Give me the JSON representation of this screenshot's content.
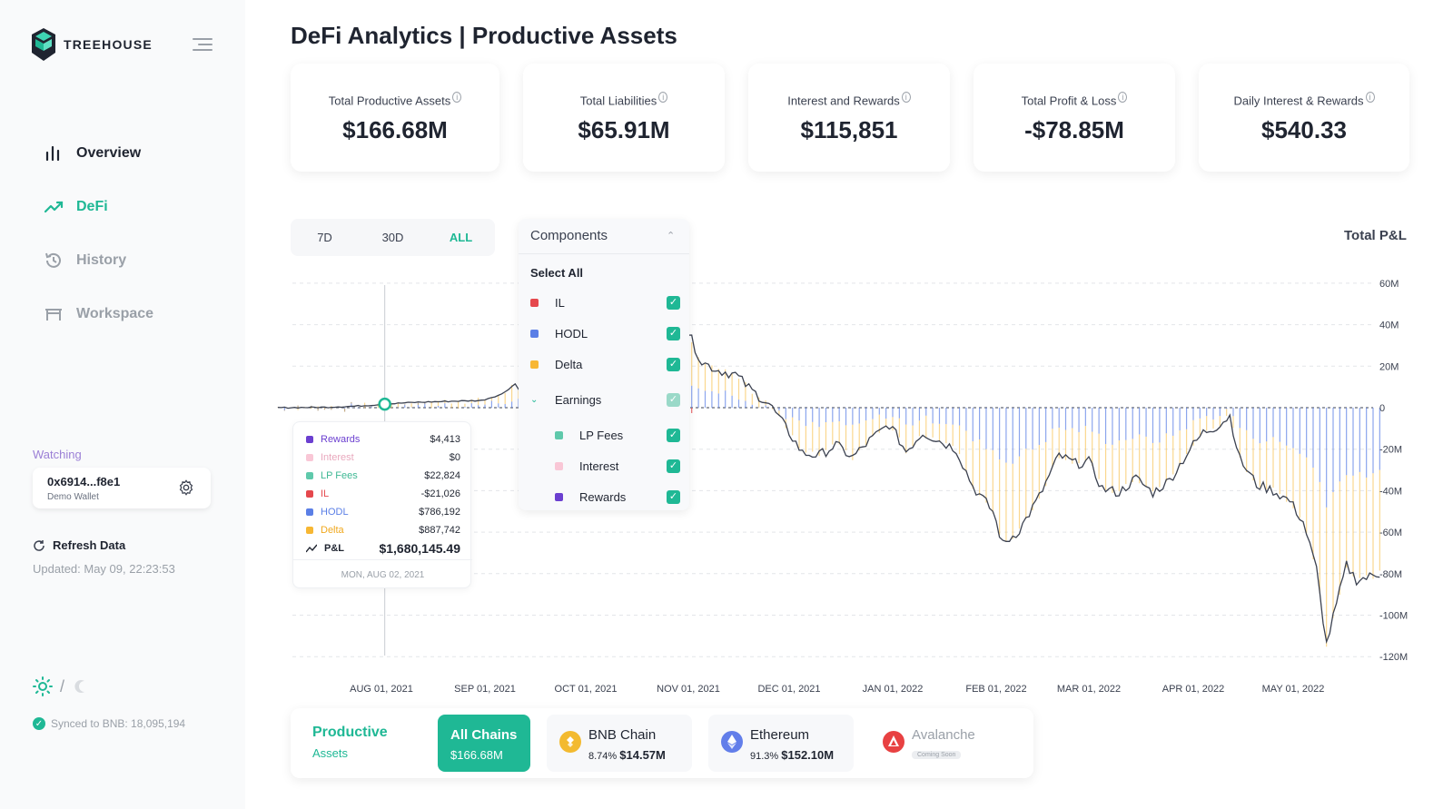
{
  "app": {
    "name": "TREEHOUSE"
  },
  "page": {
    "title": "DeFi Analytics | Productive Assets"
  },
  "sidebar": {
    "items": [
      {
        "label": "Overview"
      },
      {
        "label": "DeFi"
      },
      {
        "label": "History"
      },
      {
        "label": "Workspace"
      }
    ],
    "watching_label": "Watching",
    "wallet": {
      "address": "0x6914...f8e1",
      "name": "Demo Wallet"
    },
    "refresh_label": "Refresh Data",
    "updated": "Updated: May 09, 22:23:53",
    "theme_sep": "/",
    "synced": "Synced to BNB: 18,095,194"
  },
  "kpis": [
    {
      "label": "Total Productive Assets",
      "value": "$166.68M"
    },
    {
      "label": "Total Liabilities",
      "value": "$65.91M"
    },
    {
      "label": "Interest and Rewards",
      "value": "$115,851"
    },
    {
      "label": "Total Profit & Loss",
      "value": "-$78.85M"
    },
    {
      "label": "Daily Interest & Rewards",
      "value": "$540.33"
    }
  ],
  "info_glyph": "i",
  "range_tabs": [
    "7D",
    "30D",
    "ALL"
  ],
  "active_range": "ALL",
  "components": {
    "header": "Components",
    "select_all": "Select All",
    "items": [
      {
        "label": "IL",
        "color": "#e5484d",
        "checked": true
      },
      {
        "label": "HODL",
        "color": "#5b7fe6",
        "checked": true
      },
      {
        "label": "Delta",
        "color": "#f7b733",
        "checked": true
      },
      {
        "label": "Earnings",
        "checked": true
      },
      {
        "label": "LP Fees",
        "color": "#5fc9ab",
        "checked": true
      },
      {
        "label": "Interest",
        "color": "#f9c7d6",
        "checked": true
      },
      {
        "label": "Rewards",
        "color": "#6b3fd0",
        "checked": true
      }
    ]
  },
  "chart_data": {
    "type": "bar",
    "title": "Total P&L",
    "xlabel": "",
    "ylabel": "",
    "ylim": [
      -120000000,
      60000000
    ],
    "y_ticks": [
      "60M",
      "40M",
      "20M",
      "0",
      "-20M",
      "-40M",
      "-60M",
      "-80M",
      "-100M",
      "-120M"
    ],
    "x_ticks": [
      "AUG 01, 2021",
      "SEP 01, 2021",
      "OCT 01, 2021",
      "NOV 01, 2021",
      "DEC 01, 2021",
      "JAN 01, 2022",
      "FEB 01, 2022",
      "MAR 01, 2022",
      "APR 01, 2022",
      "MAY 01, 2022"
    ],
    "grid": true,
    "series": [
      {
        "name": "HODL",
        "color": "#5b7fe6"
      },
      {
        "name": "Delta",
        "color": "#f7b733"
      },
      {
        "name": "IL",
        "color": "#e5484d"
      },
      {
        "name": "P&L",
        "color": "#3b4150"
      }
    ],
    "pl_series": [
      [
        "2021-07-01",
        0
      ],
      [
        "2021-07-15",
        0.2
      ],
      [
        "2021-07-25",
        0.8
      ],
      [
        "2021-08-02",
        1.68
      ],
      [
        "2021-08-10",
        2.5
      ],
      [
        "2021-08-20",
        3.0
      ],
      [
        "2021-08-31",
        3.5
      ],
      [
        "2021-09-06",
        6.5
      ],
      [
        "2021-09-10",
        11.5
      ],
      [
        "2021-09-14",
        1.0
      ],
      [
        "2021-10-01",
        12
      ],
      [
        "2021-10-10",
        25
      ],
      [
        "2021-10-20",
        33
      ],
      [
        "2021-10-28",
        37
      ],
      [
        "2021-11-01",
        36
      ],
      [
        "2021-11-05",
        22
      ],
      [
        "2021-11-10",
        18
      ],
      [
        "2021-11-15",
        16
      ],
      [
        "2021-11-20",
        8
      ],
      [
        "2021-11-25",
        2
      ],
      [
        "2021-12-01",
        -12
      ],
      [
        "2021-12-05",
        -22
      ],
      [
        "2021-12-10",
        -23
      ],
      [
        "2021-12-15",
        -18
      ],
      [
        "2021-12-20",
        -24
      ],
      [
        "2021-12-25",
        -16
      ],
      [
        "2021-12-31",
        -8
      ],
      [
        "2022-01-05",
        -21
      ],
      [
        "2022-01-10",
        -12
      ],
      [
        "2022-01-15",
        -16
      ],
      [
        "2022-01-20",
        -20
      ],
      [
        "2022-01-25",
        -38
      ],
      [
        "2022-01-31",
        -50
      ],
      [
        "2022-02-03",
        -66
      ],
      [
        "2022-02-08",
        -59
      ],
      [
        "2022-02-14",
        -43
      ],
      [
        "2022-02-20",
        -23
      ],
      [
        "2022-02-25",
        -27
      ],
      [
        "2022-03-01",
        -26
      ],
      [
        "2022-03-05",
        -39
      ],
      [
        "2022-03-10",
        -41
      ],
      [
        "2022-03-15",
        -34
      ],
      [
        "2022-03-20",
        -41
      ],
      [
        "2022-03-25",
        -35
      ],
      [
        "2022-03-31",
        -20
      ],
      [
        "2022-04-04",
        -12
      ],
      [
        "2022-04-08",
        -9
      ],
      [
        "2022-04-12",
        -4
      ],
      [
        "2022-04-15",
        -25
      ],
      [
        "2022-04-20",
        -37
      ],
      [
        "2022-04-25",
        -40
      ],
      [
        "2022-04-30",
        -45
      ],
      [
        "2022-05-04",
        -55
      ],
      [
        "2022-05-08",
        -78
      ],
      [
        "2022-05-11",
        -114
      ],
      [
        "2022-05-14",
        -95
      ],
      [
        "2022-05-17",
        -76
      ],
      [
        "2022-05-20",
        -83
      ],
      [
        "2022-05-23",
        -82
      ],
      [
        "2022-05-27",
        -80
      ]
    ]
  },
  "tooltip": {
    "rows": [
      {
        "name": "Rewards",
        "color": "#6b3fd0",
        "value": "$4,413"
      },
      {
        "name": "Interest",
        "color": "#f9c7d6",
        "value": "$0"
      },
      {
        "name": "LP Fees",
        "color": "#5fc9ab",
        "value": "$22,824"
      },
      {
        "name": "IL",
        "color": "#e5484d",
        "value": "-$21,026"
      },
      {
        "name": "HODL",
        "color": "#5b7fe6",
        "value": "$786,192"
      },
      {
        "name": "Delta",
        "color": "#f7b733",
        "value": "$887,742"
      },
      {
        "name": "P&L",
        "value": "$1,680,145.49"
      }
    ],
    "date": "MON, AUG 02, 2021"
  },
  "chains": {
    "title": "Productive",
    "subtitle": "Assets",
    "items": [
      {
        "name": "All Chains",
        "value": "$166.68M",
        "active": true
      },
      {
        "name": "BNB Chain",
        "pct": "8.74%",
        "value": "$14.57M",
        "color": "#f3ba2f"
      },
      {
        "name": "Ethereum",
        "pct": "91.3%",
        "value": "$152.10M",
        "color": "#627eea"
      },
      {
        "name": "Avalanche",
        "badge": "Coming Soon",
        "color": "#e84142"
      }
    ]
  }
}
